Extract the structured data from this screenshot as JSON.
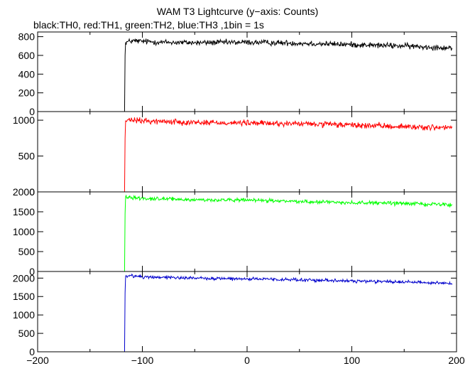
{
  "chart_data": {
    "type": "line",
    "title": "WAM T3 Lightcurve (y−axis: Counts)",
    "subtitle": "black:TH0, red:TH1, green:TH2, blue:TH3 ,1bin = 1s",
    "xlim": [
      -200,
      200
    ],
    "x_ticks": [
      -200,
      -100,
      0,
      100,
      200
    ],
    "x_tick_labels": [
      "−200",
      "−100",
      "0",
      "100",
      "200"
    ],
    "panels": [
      {
        "series": "TH0",
        "color": "#000000",
        "ylim": [
          0,
          850
        ],
        "y_ticks": [
          0,
          200,
          400,
          600,
          800
        ],
        "y_tick_labels": [
          "0",
          "200",
          "400",
          "600",
          "800"
        ],
        "points": [
          [
            -200,
            0
          ],
          [
            -117,
            0
          ],
          [
            -116.5,
            600
          ],
          [
            -116,
            740
          ],
          [
            -110,
            755
          ],
          [
            -100,
            750
          ],
          [
            -80,
            740
          ],
          [
            -50,
            735
          ],
          [
            0,
            740
          ],
          [
            50,
            730
          ],
          [
            100,
            715
          ],
          [
            150,
            700
          ],
          [
            196,
            680
          ]
        ],
        "noise": 30
      },
      {
        "series": "TH1",
        "color": "#ff0000",
        "ylim": [
          0,
          1120
        ],
        "y_ticks": [
          0,
          500,
          1000
        ],
        "y_tick_labels": [
          "0",
          "500",
          "1000"
        ],
        "points": [
          [
            -200,
            0
          ],
          [
            -117,
            0
          ],
          [
            -116.5,
            750
          ],
          [
            -116,
            990
          ],
          [
            -110,
            1000
          ],
          [
            -100,
            990
          ],
          [
            -50,
            970
          ],
          [
            0,
            960
          ],
          [
            50,
            950
          ],
          [
            100,
            930
          ],
          [
            150,
            910
          ],
          [
            196,
            890
          ]
        ],
        "noise": 40
      },
      {
        "series": "TH2",
        "color": "#00ff00",
        "ylim": [
          0,
          2000
        ],
        "y_ticks": [
          0,
          500,
          1000,
          1500,
          2000
        ],
        "y_tick_labels": [
          "0",
          "500",
          "1000",
          "1500",
          "2000"
        ],
        "points": [
          [
            -200,
            0
          ],
          [
            -117,
            0
          ],
          [
            -116.5,
            1450
          ],
          [
            -116,
            1880
          ],
          [
            -110,
            1860
          ],
          [
            -100,
            1840
          ],
          [
            -50,
            1800
          ],
          [
            0,
            1790
          ],
          [
            50,
            1760
          ],
          [
            100,
            1730
          ],
          [
            150,
            1710
          ],
          [
            196,
            1680
          ]
        ],
        "noise": 45
      },
      {
        "series": "TH3",
        "color": "#0000cc",
        "ylim": [
          0,
          2180
        ],
        "y_ticks": [
          0,
          500,
          1000,
          1500,
          2000
        ],
        "y_tick_labels": [
          "0",
          "500",
          "1000",
          "1500",
          "2000"
        ],
        "points": [
          [
            -200,
            0
          ],
          [
            -117,
            0
          ],
          [
            -116.5,
            1600
          ],
          [
            -116,
            2050
          ],
          [
            -110,
            2060
          ],
          [
            -100,
            2040
          ],
          [
            -50,
            2000
          ],
          [
            0,
            1980
          ],
          [
            50,
            1950
          ],
          [
            100,
            1920
          ],
          [
            150,
            1900
          ],
          [
            196,
            1860
          ]
        ],
        "noise": 45
      }
    ]
  }
}
